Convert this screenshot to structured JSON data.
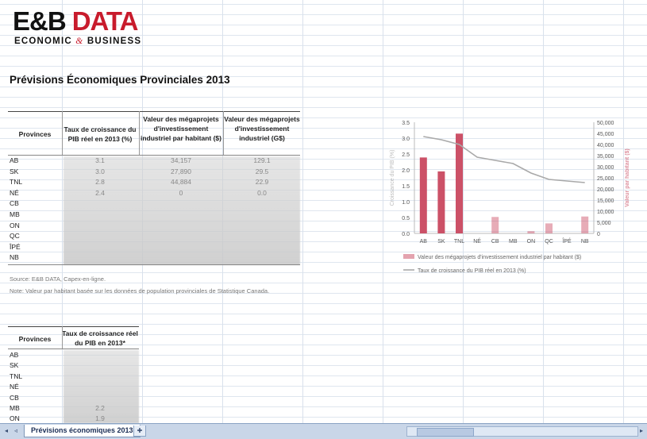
{
  "logo": {
    "line1_left": "E&B",
    "line1_right": "DATA",
    "line2_left": "ECONOMIC",
    "line2_amp": "&",
    "line2_right": "BUSINESS"
  },
  "title": "Prévisions Économiques Provinciales 2013",
  "table1": {
    "headers": [
      "Provinces",
      "Taux de croissance du PIB réel en 2013 (%)",
      "Valeur des mégaprojets d'investissement industriel par habitant ($)",
      "Valeur des mégaprojets d'investissement industriel (G$)"
    ],
    "rows": [
      {
        "prov": "AB",
        "g": "3.1",
        "v": "34,157",
        "t": "129.1"
      },
      {
        "prov": "SK",
        "g": "3.0",
        "v": "27,890",
        "t": "29.5"
      },
      {
        "prov": "TNL",
        "g": "2.8",
        "v": "44,884",
        "t": "22.9"
      },
      {
        "prov": "NÉ",
        "g": "2.4",
        "v": "0",
        "t": "0.0"
      },
      {
        "prov": "CB",
        "g": "",
        "v": "",
        "t": ""
      },
      {
        "prov": "MB",
        "g": "",
        "v": "",
        "t": ""
      },
      {
        "prov": "ON",
        "g": "",
        "v": "",
        "t": ""
      },
      {
        "prov": "QC",
        "g": "",
        "v": "",
        "t": ""
      },
      {
        "prov": "ÎPÉ",
        "g": "",
        "v": "",
        "t": ""
      },
      {
        "prov": "NB",
        "g": "",
        "v": "",
        "t": ""
      }
    ]
  },
  "notes": {
    "source": "Source: E&B DATA, Capex-en-ligne.",
    "note": "Note: Valeur par habitant basée sur les données de population provinciales de Statistique Canada."
  },
  "table2": {
    "headers": [
      "Provinces",
      "Taux de croissance réel du PIB en 2013*"
    ],
    "rows": [
      {
        "prov": "AB",
        "g": ""
      },
      {
        "prov": "SK",
        "g": ""
      },
      {
        "prov": "TNL",
        "g": ""
      },
      {
        "prov": "NÉ",
        "g": ""
      },
      {
        "prov": "CB",
        "g": ""
      },
      {
        "prov": "MB",
        "g": "2.2"
      },
      {
        "prov": "ON",
        "g": "1.9"
      }
    ]
  },
  "chart_data": {
    "type": "bar",
    "categories": [
      "AB",
      "SK",
      "TNL",
      "NÉ",
      "CB",
      "MB",
      "ON",
      "QC",
      "ÎPÉ",
      "NB"
    ],
    "series": [
      {
        "name": "Valeur des mégaprojets d'investissement industriel par habitant ($)",
        "type": "bar",
        "axis": "right",
        "values": [
          34157,
          27890,
          44884,
          0,
          7400,
          0,
          1000,
          4500,
          0,
          7600
        ]
      },
      {
        "name": "Taux de croissance du PIB réel en 2013 (%)",
        "type": "line",
        "axis": "left",
        "values": [
          3.05,
          2.95,
          2.8,
          2.4,
          2.3,
          2.2,
          1.9,
          1.7,
          1.65,
          1.6
        ]
      }
    ],
    "ylabel_left": "Croissance du PIB (%)",
    "ylabel_right": "Valeur par habitant ($)",
    "ylim_left": [
      0,
      3.5
    ],
    "yticks_left": [
      "0.0",
      "0.5",
      "1.0",
      "1.5",
      "2.0",
      "2.5",
      "3.0",
      "3.5"
    ],
    "ylim_right": [
      0,
      50000
    ],
    "yticks_right": [
      "0",
      "5,000",
      "10,000",
      "15,000",
      "20,000",
      "25,000",
      "30,000",
      "35,000",
      "40,000",
      "45,000",
      "50,000"
    ],
    "legend_position": "bottom",
    "colors": {
      "bar": "#c9485f",
      "line": "#a9a9a9"
    }
  },
  "sheet_tab": "Prévisions économiques 2013"
}
